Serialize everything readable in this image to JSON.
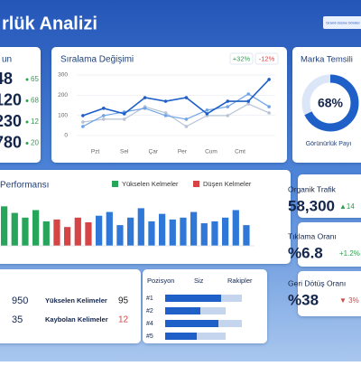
{
  "header": {
    "title": "rlük Analizi",
    "button": "Grand dosna Gönder"
  },
  "stats_left": {
    "title": "un",
    "rows": [
      {
        "value": "48",
        "change": "65"
      },
      {
        "value": "120",
        "change": "68"
      },
      {
        "value": "230",
        "change": "12"
      },
      {
        "value": "780",
        "change": "20"
      }
    ]
  },
  "rank_chart": {
    "type": "line",
    "title": "Sıralama Değişimi",
    "badges": [
      {
        "text": "+32%",
        "color": "#2e9e4f"
      },
      {
        "text": "-12%",
        "color": "#d64545"
      }
    ],
    "x": [
      0,
      1,
      2,
      3,
      4,
      5,
      6,
      7,
      8,
      9
    ],
    "xlim": [
      -0.3,
      9.3
    ],
    "xticks": [
      {
        "value": 0.6,
        "label": "Pzt"
      },
      {
        "value": 2,
        "label": "Sel"
      },
      {
        "value": 3.4,
        "label": "Çar"
      },
      {
        "value": 4.8,
        "label": "Per"
      },
      {
        "value": 6.2,
        "label": "Cum"
      },
      {
        "value": 7.6,
        "label": "Cmt"
      }
    ],
    "ylim": [
      0,
      300
    ],
    "yticks": [
      0,
      100,
      200,
      300
    ],
    "grid": true,
    "series": [
      {
        "color": "#1f5fc8",
        "values": [
          99,
          135,
          108,
          188,
          170,
          188,
          108,
          170,
          170,
          278
        ]
      },
      {
        "color": "#6fa4e8",
        "values": [
          45,
          99,
          117,
          135,
          99,
          81,
          126,
          143,
          206,
          143
        ]
      },
      {
        "color": "#b8c4d6",
        "values": [
          67,
          81,
          81,
          143,
          112,
          45,
          99,
          99,
          157,
          112
        ]
      }
    ]
  },
  "gauge": {
    "type": "donut",
    "title": "Marka Temsili",
    "value": 68,
    "value_label": "68%",
    "subtitle": "Görünürlük Payı",
    "color": "#1f5fc8"
  },
  "perf_chart": {
    "type": "bar",
    "title": "Performansı",
    "legend": [
      {
        "name": "Yükselen Kelmeler",
        "color": "#27a55a"
      },
      {
        "name": "Düşen Kelmeler",
        "color": "#d64545"
      }
    ],
    "ylim": [
      0,
      50
    ],
    "values": [
      42,
      35,
      30,
      38,
      26,
      28,
      20,
      30,
      25,
      32,
      36,
      22,
      30,
      40,
      26,
      34,
      28,
      30,
      36,
      24,
      26,
      30,
      38,
      22
    ],
    "colors": [
      "#27a55a",
      "#27a55a",
      "#27a55a",
      "#27a55a",
      "#27a55a",
      "#d64545",
      "#d64545",
      "#d64545",
      "#d64545",
      "#2f78d8",
      "#2f78d8",
      "#2f78d8",
      "#2f78d8",
      "#2f78d8",
      "#2f78d8",
      "#2f78d8",
      "#2f78d8",
      "#2f78d8",
      "#2f78d8",
      "#2f78d8",
      "#2f78d8",
      "#2f78d8",
      "#2f78d8",
      "#2f78d8"
    ]
  },
  "kpis": [
    {
      "label": "Organik Trafik",
      "value": "58,300",
      "change": "▲14",
      "color": "#2e9e4f"
    },
    {
      "label": "Tıklama Oranı",
      "value": "%6.8",
      "change": "+1.2%",
      "color": "#2e9e4f"
    },
    {
      "label": "Geri Dötüş Oranı",
      "value": "%38",
      "change": "▼ 3%",
      "color": "#d64545"
    }
  ],
  "keywords": {
    "totals": [
      "950",
      "35"
    ],
    "rows": [
      {
        "label": "Yükselen Kelimeler",
        "value": "95",
        "color": "#222"
      },
      {
        "label": "Kaybolan Kelimeler",
        "value": "12",
        "color": "#d64545"
      }
    ]
  },
  "positions": {
    "type": "bar",
    "columns": [
      "Pozisyon",
      "Siz",
      "Rakipler"
    ],
    "xlim": [
      0,
      100
    ],
    "categories": [
      "#1",
      "#2",
      "#4",
      "#5"
    ],
    "series": [
      {
        "name": "Siz",
        "color": "#1f5fc8",
        "values": [
          62,
          39,
          59,
          35
        ]
      },
      {
        "name": "Rakipler",
        "color": "#c5d5ee",
        "values": [
          85,
          67,
          85,
          67
        ]
      }
    ]
  }
}
